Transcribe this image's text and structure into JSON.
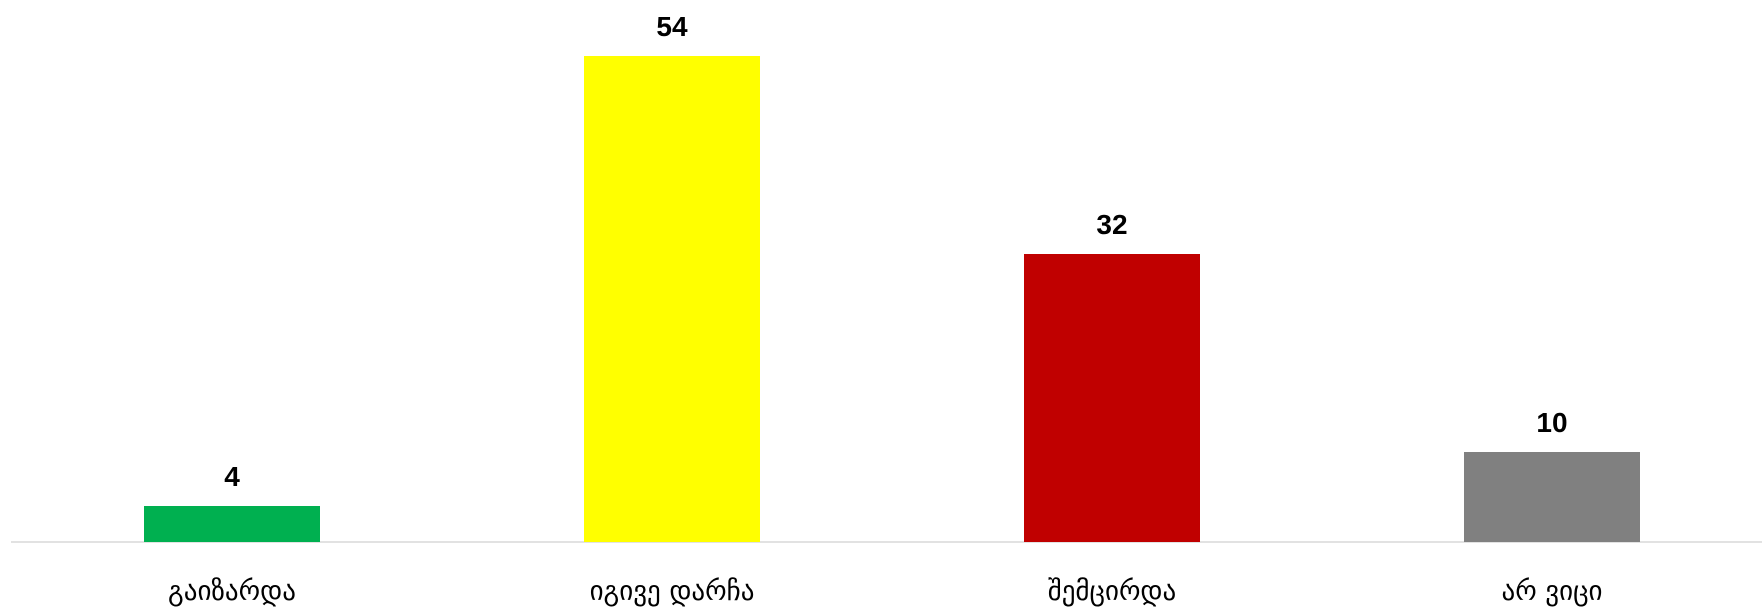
{
  "chart_data": {
    "type": "bar",
    "categories": [
      "გაიზარდა",
      "იგივე დარჩა",
      "შემცირდა",
      "არ ვიცი"
    ],
    "values": [
      4,
      54,
      32,
      10
    ],
    "colors": [
      "#00b050",
      "#ffff00",
      "#c00000",
      "#808080"
    ]
  }
}
